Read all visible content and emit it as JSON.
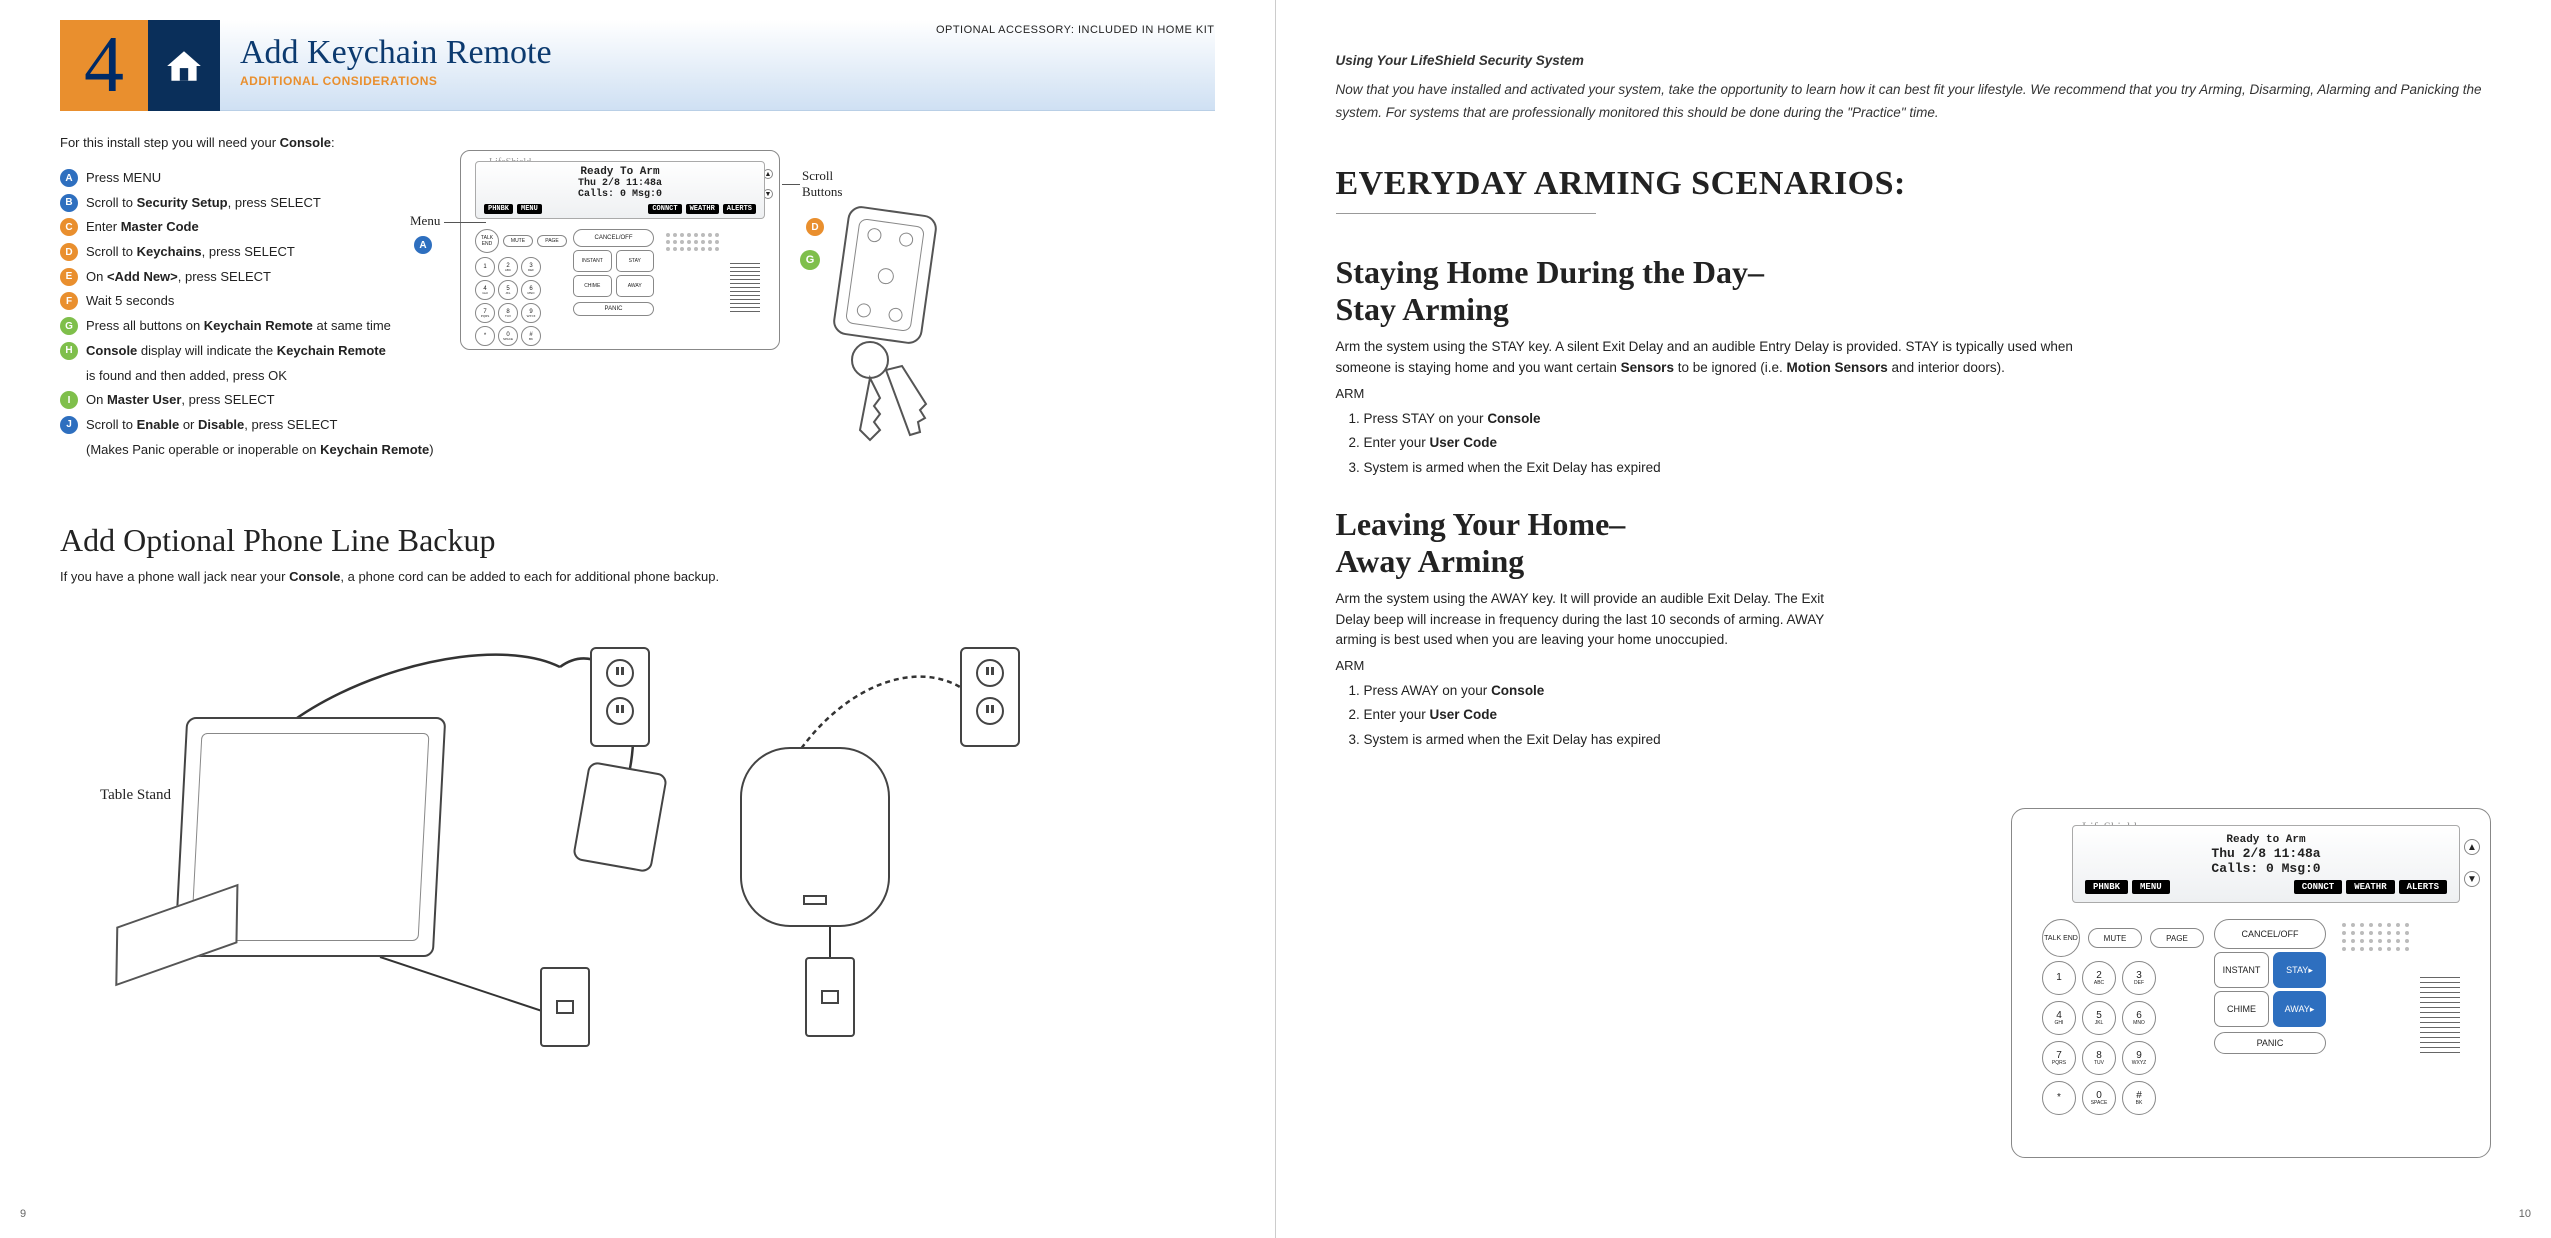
{
  "colors": {
    "orange": "#e98f2e",
    "navy": "#0a2f5a",
    "blue": "#2e6fbf",
    "green": "#7fbf4b",
    "lcd_label_bg": "#000000"
  },
  "left": {
    "step_number": "4",
    "optional_text": "OPTIONAL ACCESSORY: INCLUDED IN HOME KIT",
    "title": "Add Keychain Remote",
    "subtitle": "ADDITIONAL CONSIDERATIONS",
    "intro_pre": "For this install step you will need your ",
    "intro_bold": "Console",
    "intro_post": ":",
    "steps": [
      {
        "l": "A",
        "c": "blue",
        "html": "Press MENU"
      },
      {
        "l": "B",
        "c": "blue",
        "html": "Scroll to <b>Security Setup</b>, press SELECT"
      },
      {
        "l": "C",
        "c": "orange",
        "html": "Enter <b>Master Code</b>"
      },
      {
        "l": "D",
        "c": "orange",
        "html": "Scroll to <b>Keychains</b>, press SELECT"
      },
      {
        "l": "E",
        "c": "orange",
        "html": "On <b>&lt;Add New&gt;</b>, press SELECT"
      },
      {
        "l": "F",
        "c": "orange",
        "html": "Wait 5 seconds"
      },
      {
        "l": "G",
        "c": "green",
        "html": "Press all buttons on <b>Keychain Remote</b> at same time"
      },
      {
        "l": "H",
        "c": "green",
        "html": "<b>Console</b> display will indicate the <b>Keychain Remote</b>"
      },
      {
        "cont": true,
        "html": "is found and then added, press OK"
      },
      {
        "l": "I",
        "c": "green",
        "html": "On <b>Master User</b>, press SELECT"
      },
      {
        "l": "J",
        "c": "blue",
        "html": "Scroll to <b>Enable</b> or <b>Disable</b>, press SELECT"
      },
      {
        "cont": true,
        "html": "(Makes Panic operable or inoperable on <b>Keychain Remote</b>)"
      }
    ],
    "callout_menu": "Menu",
    "callout_scroll": "Scroll\nButtons",
    "phone_h2": "Add Optional Phone Line Backup",
    "phone_p_pre": "If you have a phone wall jack near your ",
    "phone_p_bold": "Console",
    "phone_p_post": ", a phone cord can be added to each for additional phone backup.",
    "table_stand": "Table Stand",
    "page_num": "9"
  },
  "console": {
    "brand": "LifeShield",
    "lcd_line1": "Ready To Arm",
    "lcd_line2": "Thu 2/8 11:48a",
    "lcd_line3": "Calls: 0 Msg:0",
    "softkeys": [
      "PHNBK",
      "MENU",
      "CONNCT",
      "WEATHR",
      "ALERTS"
    ],
    "talk": "TALK\nEND",
    "mute": "MUTE",
    "page": "PAGE",
    "cancel": "CANCEL/OFF",
    "instant": "INSTANT",
    "stay": "STAY",
    "chime": "CHIME",
    "away": "AWAY",
    "panic": "PANIC",
    "nums": [
      {
        "n": "1",
        "s": ""
      },
      {
        "n": "2",
        "s": "ABC"
      },
      {
        "n": "3",
        "s": "DEF"
      },
      {
        "n": "4",
        "s": "GHI"
      },
      {
        "n": "5",
        "s": "JKL"
      },
      {
        "n": "6",
        "s": "MNO"
      },
      {
        "n": "7",
        "s": "PQRS"
      },
      {
        "n": "8",
        "s": "TUV"
      },
      {
        "n": "9",
        "s": "WXYZ"
      },
      {
        "n": "*",
        "s": ""
      },
      {
        "n": "0",
        "s": "SPACE"
      },
      {
        "n": "#",
        "s": "BK"
      }
    ]
  },
  "callout_letters": {
    "menu": "A",
    "scroll": "D",
    "keychain": "G"
  },
  "right": {
    "italic_title": "Using Your LifeShield Security System",
    "italic_body": "Now that you have installed and activated your system, take the opportunity to learn how it can best fit your lifestyle. We recommend that you try Arming, Disarming, Alarming and Panicking the system. For systems that are professionally monitored this should be done during the \"Practice\" time.",
    "h1": "EVERYDAY ARMING SCENARIOS:",
    "stay_h2_l1": "Staying Home During the Day–",
    "stay_h2_l2": "Stay Arming",
    "stay_p": "Arm the system using the STAY key. A silent Exit Delay and an audible Entry Delay is provided. STAY is typically used when someone is staying home and you want certain <b>Sensors</b> to be ignored (i.e. <b>Motion Sensors</b> and interior doors).",
    "arm_label": "ARM",
    "stay_steps": [
      "Press STAY on your <b>Console</b>",
      "Enter your <b>User Code</b>",
      "System is armed when the Exit Delay has expired"
    ],
    "away_h2_l1": "Leaving Your Home–",
    "away_h2_l2": "Away Arming",
    "away_p": "Arm the system using the AWAY key. It will provide an audible Exit Delay. The Exit Delay beep will increase in frequency during the last 10 seconds of arming. AWAY arming is best used when you are leaving your home unoccupied.",
    "away_steps": [
      "Press AWAY on your <b>Console</b>",
      "Enter your <b>User Code</b>",
      "System is armed when the Exit Delay has expired"
    ],
    "console_lcd_line1": "Ready to Arm",
    "page_num": "10"
  }
}
